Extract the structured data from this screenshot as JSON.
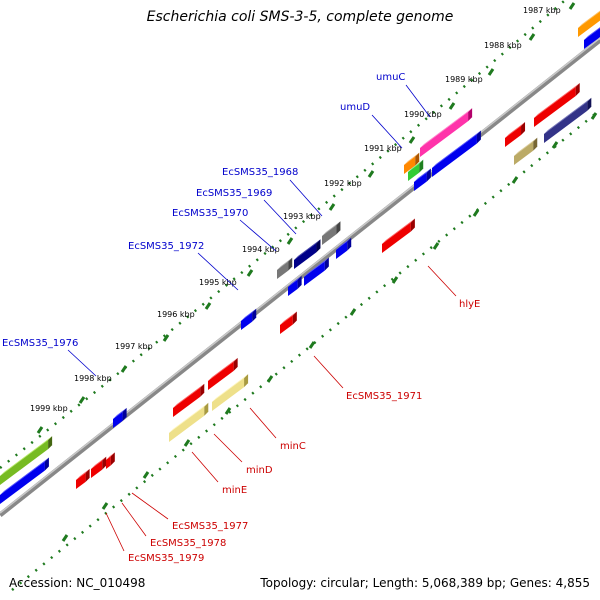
{
  "title": "Escherichia coli SMS-3-5, complete genome",
  "footer": {
    "accession": "Accession: NC_010498",
    "summary": "Topology: circular; Length: 5,068,389 bp; Genes: 4,855"
  },
  "colors": {
    "backbone": "#8a8a8a",
    "tick": "#1f7a1f",
    "label_forward": "#0000cc",
    "label_reverse": "#cc0000",
    "kbp_text": "#000000"
  },
  "kbp_labels": [
    "1987 kbp",
    "1988 kbp",
    "1989 kbp",
    "1990 kbp",
    "1991 kbp",
    "1992 kbp",
    "1993 kbp",
    "1994 kbp",
    "1995 kbp",
    "1996 kbp",
    "1997 kbp",
    "1998 kbp",
    "1999 kbp"
  ],
  "gene_labels_forward": [
    "umuC",
    "umuD",
    "EcSMS35_1968",
    "EcSMS35_1969",
    "EcSMS35_1970",
    "EcSMS35_1972",
    "EcSMS35_1976"
  ],
  "gene_labels_reverse": [
    "hlyE",
    "EcSMS35_1971",
    "minC",
    "minD",
    "minE",
    "EcSMS35_1977",
    "EcSMS35_1978",
    "EcSMS35_1979"
  ]
}
